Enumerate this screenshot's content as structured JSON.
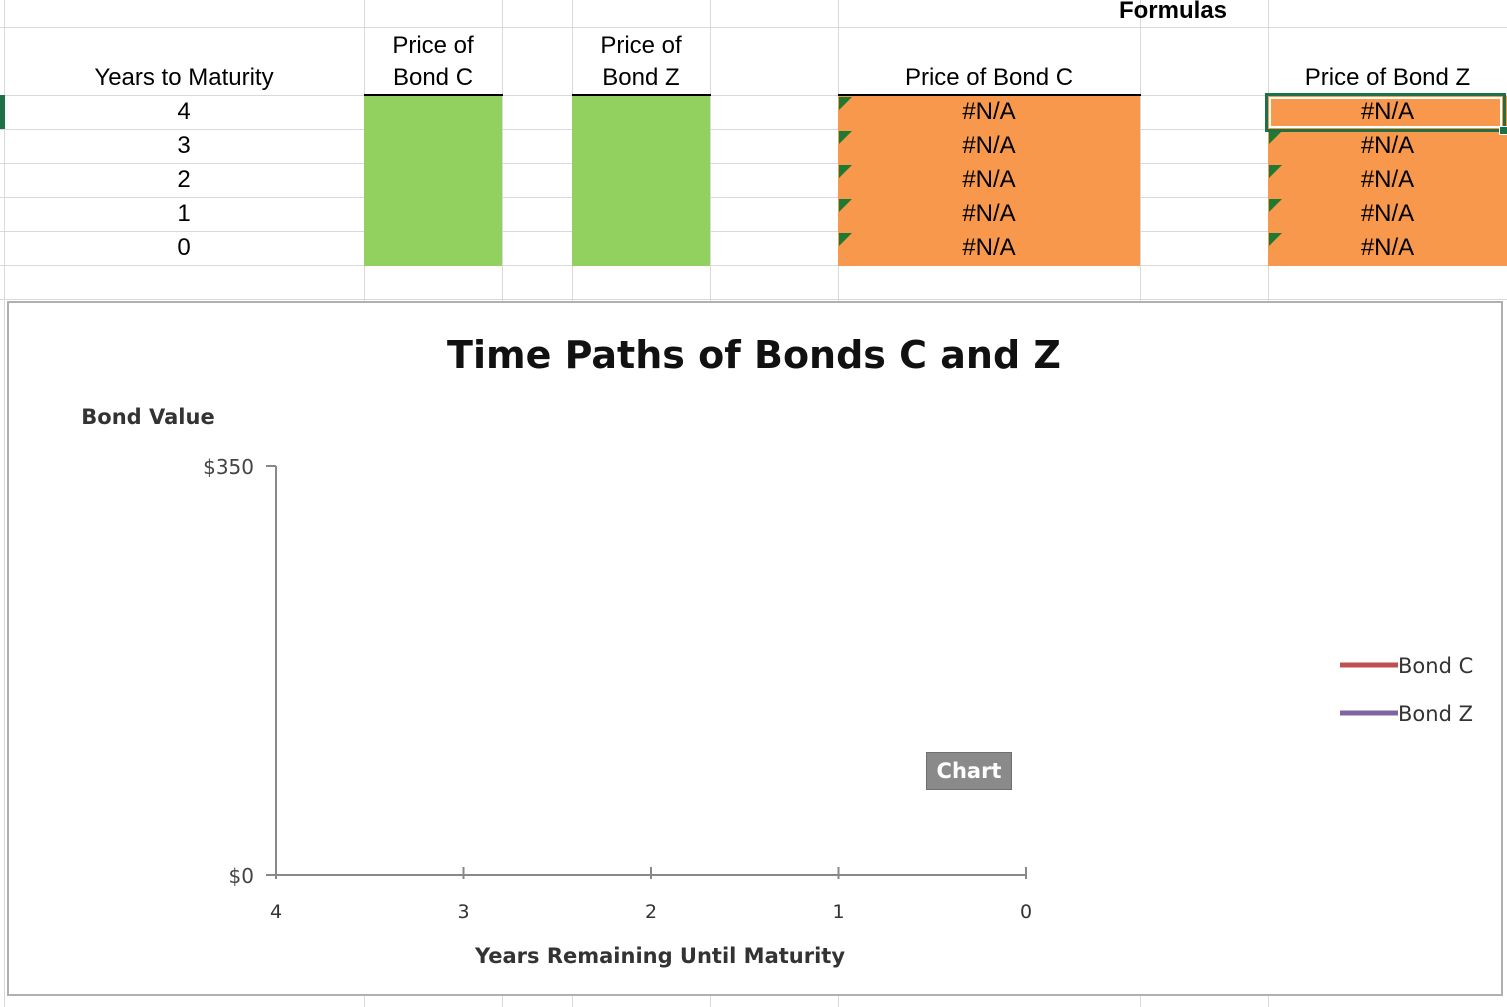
{
  "sheet": {
    "formulas_label": "Formulas",
    "headers": {
      "years": "Years to Maturity",
      "price_c_line1": "Price of",
      "price_c_line2": "Bond C",
      "price_z_line1": "Price of",
      "price_z_line2": "Bond Z",
      "formula_c": "Price of Bond C",
      "formula_z": "Price of Bond Z"
    },
    "years": [
      "4",
      "3",
      "2",
      "1",
      "0"
    ],
    "formula_c_values": [
      "#N/A",
      "#N/A",
      "#N/A",
      "#N/A",
      "#N/A"
    ],
    "formula_z_values": [
      "#N/A",
      "#N/A",
      "#N/A",
      "#N/A",
      "#N/A"
    ],
    "colors": {
      "input_fill": "#92d05f",
      "formula_fill": "#f8984c",
      "selection": "#1e7145"
    }
  },
  "chart_data": {
    "type": "line",
    "title": "Time Paths of Bonds C and Z",
    "ylabel": "Bond Value",
    "xlabel": "Years Remaining Until Maturity",
    "categories": [
      "4",
      "3",
      "2",
      "1",
      "0"
    ],
    "ytick_labels": [
      "$350",
      "$0"
    ],
    "ylim": [
      0,
      350
    ],
    "series": [
      {
        "name": "Bond C",
        "color": "#c0504d",
        "values": [
          null,
          null,
          null,
          null,
          null
        ]
      },
      {
        "name": "Bond Z",
        "color": "#8064a2",
        "values": [
          null,
          null,
          null,
          null,
          null
        ]
      }
    ],
    "legend": "right",
    "grid": false
  },
  "chart_badge": "Chart"
}
